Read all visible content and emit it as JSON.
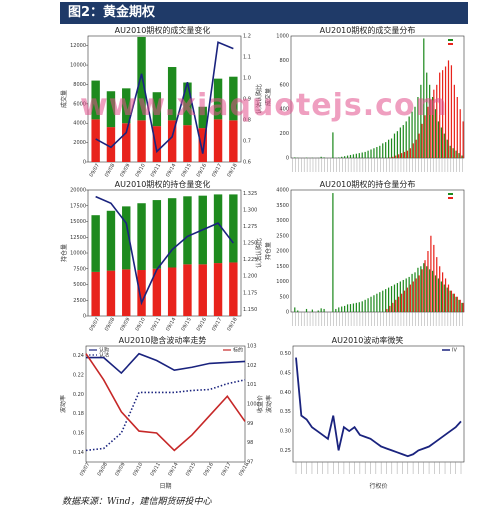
{
  "header": {
    "title": "图2：黄金期权"
  },
  "source": "数据来源：Wind，建信期货研投中心",
  "watermark": "www.xiaquotejs.com",
  "colors": {
    "red": "#e8231c",
    "green": "#1e8a1e",
    "navy": "#1a237e",
    "header_bg": "#1f3a68"
  },
  "chart_data": [
    {
      "id": "p1",
      "type": "bar",
      "title": "AU2010期权的成交量变化",
      "ylabel": "成交量",
      "y2label": "认沽认购比",
      "stacked": true,
      "categories": [
        "09/07",
        "09/08",
        "09/09",
        "09/10",
        "09/11",
        "09/14",
        "09/15",
        "09/16",
        "09/17",
        "09/18"
      ],
      "series": [
        {
          "color": "#e8231c",
          "values": [
            4400,
            3600,
            4000,
            4300,
            3700,
            4300,
            3800,
            3500,
            4400,
            4300
          ]
        },
        {
          "color": "#1e8a1e",
          "values": [
            4000,
            3700,
            3600,
            8600,
            3500,
            5500,
            4400,
            2200,
            4200,
            4500
          ]
        }
      ],
      "ylim": [
        0,
        13000
      ],
      "yticks": [
        0,
        2000,
        4000,
        6000,
        8000,
        10000,
        12000
      ],
      "line": {
        "color": "#1a237e",
        "values": [
          0.71,
          0.67,
          0.74,
          1.02,
          0.65,
          0.72,
          0.98,
          0.64,
          1.17,
          1.14
        ]
      },
      "y2lim": [
        0.6,
        1.2
      ],
      "y2ticks": [
        "0.6",
        "0.7",
        "0.8",
        "0.9",
        "1.0",
        "1.1",
        "1.2"
      ]
    },
    {
      "id": "p2",
      "type": "bar",
      "title": "AU2010期权的成交量分布",
      "ylabel": "成交量",
      "xlabel": "",
      "ylim": [
        0,
        1000
      ],
      "yticks": [
        0,
        200,
        400,
        600,
        800,
        1000
      ],
      "call_values": [
        0,
        5,
        2,
        0,
        0,
        3,
        0,
        2,
        0,
        1,
        10,
        5,
        0,
        0,
        210,
        2,
        5,
        10,
        15,
        20,
        25,
        30,
        35,
        40,
        45,
        50,
        60,
        70,
        80,
        90,
        100,
        120,
        130,
        150,
        160,
        200,
        220,
        250,
        270,
        300,
        340,
        380,
        420,
        500,
        600,
        980,
        700,
        600,
        500,
        400,
        300,
        250,
        200,
        150,
        100,
        80,
        60,
        40,
        20
      ],
      "put_values": [
        0,
        0,
        0,
        0,
        0,
        0,
        0,
        0,
        0,
        0,
        0,
        0,
        0,
        0,
        0,
        0,
        0,
        0,
        0,
        0,
        0,
        0,
        0,
        0,
        0,
        0,
        0,
        0,
        0,
        0,
        0,
        0,
        0,
        5,
        10,
        20,
        30,
        40,
        50,
        60,
        80,
        120,
        150,
        200,
        280,
        350,
        420,
        480,
        560,
        600,
        700,
        720,
        750,
        800,
        760,
        600,
        500,
        400,
        300
      ],
      "color_call": "#1e8a1e",
      "color_put": "#e8231c"
    },
    {
      "id": "p3",
      "type": "bar",
      "title": "AU2010期权的持仓量变化",
      "ylabel": "持仓量",
      "y2label": "认沽认购比",
      "stacked": true,
      "categories": [
        "09/07",
        "09/08",
        "09/09",
        "09/10",
        "09/11",
        "09/14",
        "09/15",
        "09/16",
        "09/17",
        "09/18"
      ],
      "series": [
        {
          "color": "#e8231c",
          "values": [
            7000,
            7200,
            7400,
            7300,
            7500,
            7700,
            8200,
            8200,
            8400,
            8500
          ]
        },
        {
          "color": "#1e8a1e",
          "values": [
            9000,
            9500,
            10000,
            10600,
            10900,
            11000,
            10800,
            10900,
            10900,
            10800
          ]
        }
      ],
      "ylim": [
        0,
        20000
      ],
      "yticks": [
        0,
        2500,
        5000,
        7500,
        10000,
        12500,
        15000,
        17500,
        20000
      ],
      "line": {
        "color": "#1a237e",
        "values": [
          1.32,
          1.31,
          1.28,
          1.16,
          1.21,
          1.24,
          1.26,
          1.27,
          1.28,
          1.25
        ]
      },
      "y2lim": [
        1.14,
        1.33
      ],
      "y2ticks": [
        "1.150",
        "1.175",
        "1.200",
        "1.225",
        "1.250",
        "1.275",
        "1.300",
        "1.325"
      ]
    },
    {
      "id": "p4",
      "type": "bar",
      "title": "AU2010期权的持仓量分布",
      "ylabel": "持仓量",
      "xlabel": "",
      "ylim": [
        0,
        4000
      ],
      "yticks": [
        0,
        500,
        1000,
        1500,
        2000,
        2500,
        3000,
        3500,
        4000
      ],
      "call_values": [
        0,
        150,
        50,
        0,
        0,
        100,
        0,
        80,
        0,
        50,
        120,
        100,
        0,
        0,
        3900,
        100,
        150,
        180,
        200,
        250,
        260,
        280,
        300,
        320,
        350,
        400,
        450,
        500,
        550,
        600,
        650,
        700,
        750,
        800,
        850,
        900,
        950,
        1000,
        1050,
        1100,
        1150,
        1250,
        1300,
        1450,
        1500,
        1600,
        1500,
        1400,
        1350,
        1200,
        1100,
        1000,
        900,
        800,
        700,
        600,
        500,
        400,
        300
      ],
      "put_values": [
        0,
        0,
        0,
        0,
        0,
        0,
        0,
        0,
        0,
        0,
        0,
        0,
        0,
        0,
        0,
        0,
        0,
        0,
        0,
        0,
        0,
        0,
        0,
        0,
        0,
        0,
        0,
        0,
        0,
        0,
        0,
        0,
        100,
        200,
        300,
        400,
        500,
        600,
        700,
        800,
        900,
        1000,
        1100,
        1200,
        1400,
        1700,
        2000,
        2500,
        2200,
        1800,
        1500,
        1300,
        1100,
        900,
        700,
        600,
        500,
        400,
        300
      ],
      "color_call": "#1e8a1e",
      "color_put": "#e8231c"
    },
    {
      "id": "p5",
      "type": "line",
      "title": "AU2010隐含波动率走势",
      "ylabel": "波动率",
      "xlabel": "日期",
      "y2label": "收盘价",
      "categories": [
        "09/07",
        "09/08",
        "09/09",
        "09/10",
        "09/11",
        "09/14",
        "09/15",
        "09/16",
        "09/17",
        "09/18"
      ],
      "legend_left": [
        "认购",
        "认沽"
      ],
      "legend_right": "标的",
      "ylim": [
        0.13,
        0.25
      ],
      "yticks": [
        0.14,
        0.16,
        0.18,
        0.2,
        0.22,
        0.24
      ],
      "series": [
        {
          "color": "#1a237e",
          "style": "solid",
          "values": [
            0.238,
            0.238,
            0.222,
            0.242,
            0.235,
            0.225,
            0.228,
            0.232,
            0.233,
            0.234
          ]
        },
        {
          "color": "#1a237e",
          "style": "dotted",
          "values": [
            0.142,
            0.144,
            0.16,
            0.202,
            0.202,
            0.202,
            0.204,
            0.205,
            0.211,
            0.215
          ]
        },
        {
          "color": "#c62828",
          "style": "solid",
          "values": [
            0.242,
            0.215,
            0.182,
            0.162,
            0.16,
            0.142,
            0.158,
            0.178,
            0.198,
            0.172
          ]
        }
      ],
      "y2lim": [
        97,
        103
      ],
      "y2ticks": [
        "97",
        "98",
        "99",
        "100",
        "101",
        "102",
        "103"
      ]
    },
    {
      "id": "p6",
      "type": "line",
      "title": "AU2010波动率微笑",
      "ylabel": "波动率",
      "xlabel": "行权价",
      "legend": "IV",
      "ylim": [
        0.22,
        0.52
      ],
      "yticks": [
        0.25,
        0.3,
        0.35,
        0.4,
        0.45,
        0.5
      ],
      "series": [
        {
          "color": "#1a237e",
          "values": [
            0.49,
            0.34,
            0.33,
            0.31,
            0.3,
            0.29,
            0.28,
            0.34,
            0.25,
            0.31,
            0.3,
            0.31,
            0.29,
            0.285,
            0.28,
            0.27,
            0.26,
            0.255,
            0.25,
            0.245,
            0.24,
            0.235,
            0.24,
            0.25,
            0.255,
            0.26,
            0.27,
            0.28,
            0.29,
            0.3,
            0.31,
            0.325
          ]
        }
      ]
    }
  ]
}
